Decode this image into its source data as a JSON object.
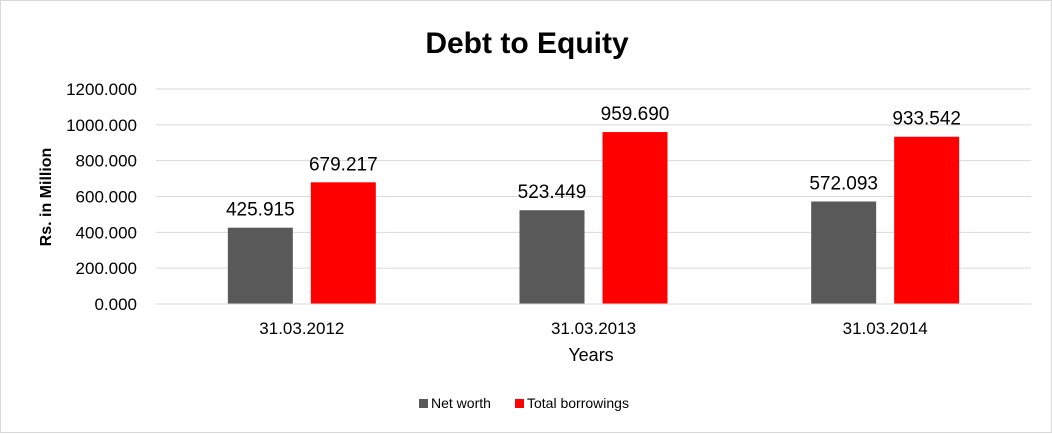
{
  "chart_data": {
    "type": "bar",
    "title": "Debt to Equity",
    "xlabel": "Years",
    "ylabel": "Rs. in Million",
    "categories": [
      "31.03.2012",
      "31.03.2013",
      "31.03.2014"
    ],
    "series": [
      {
        "name": "Net worth",
        "color": "#595959",
        "values": [
          425.915,
          523.449,
          572.093
        ],
        "labels": [
          "425.915",
          "523.449",
          "572.093"
        ]
      },
      {
        "name": "Total borrowings",
        "color": "#ff0000",
        "values": [
          679.217,
          959.69,
          933.542
        ],
        "labels": [
          "679.217",
          "959.690",
          "933.542"
        ]
      }
    ],
    "ylim": [
      0,
      1200
    ],
    "yticks": [
      0,
      200,
      400,
      600,
      800,
      1000,
      1200
    ],
    "ytick_labels": [
      "0.000",
      "200.000",
      "400.000",
      "600.000",
      "800.000",
      "1000.000",
      "1200.000"
    ],
    "grid": true,
    "legend_position": "bottom"
  }
}
